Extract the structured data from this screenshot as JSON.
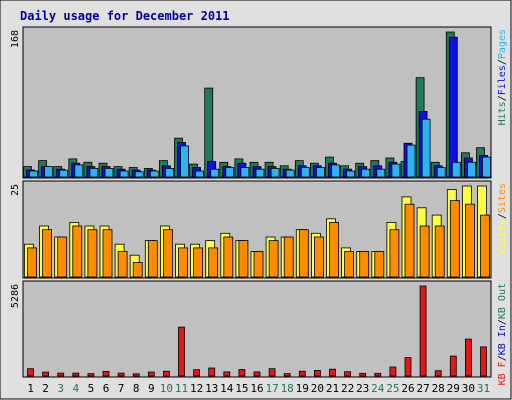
{
  "chart_data": {
    "type": "bar",
    "title": "Daily usage for December 2011",
    "colors": {
      "background": "#e0e0e0",
      "panel": "#c0c0c0",
      "title": "#0000a0",
      "hits": "#1e7b57",
      "files": "#1010e0",
      "pages": "#2db4f0",
      "visits": "#ffff40",
      "sites": "#ff8c00",
      "kb_in": "#1010c0",
      "kb_out": "#1e7b57",
      "kb_f": "#e01818",
      "weekend_label": "#207a50",
      "day_label": "#000000"
    },
    "categories": [
      "1",
      "2",
      "3",
      "4",
      "5",
      "6",
      "7",
      "8",
      "9",
      "10",
      "11",
      "12",
      "13",
      "14",
      "15",
      "16",
      "17",
      "18",
      "19",
      "20",
      "21",
      "22",
      "23",
      "24",
      "25",
      "26",
      "27",
      "28",
      "29",
      "30",
      "31"
    ],
    "weekend_days": [
      "3",
      "4",
      "10",
      "11",
      "17",
      "18",
      "24",
      "25",
      "31"
    ],
    "panels": [
      {
        "max_label": "168",
        "ymax": 168,
        "legend": [
          {
            "text": "Hits",
            "color": "#1e7b57"
          },
          {
            "text": "/",
            "color": "#000000"
          },
          {
            "text": "Files",
            "color": "#1010e0"
          },
          {
            "text": "/",
            "color": "#000000"
          },
          {
            "text": "Pages",
            "color": "#2db4f0"
          }
        ],
        "series": [
          {
            "name": "Hits",
            "color": "#1e7b57",
            "values": [
              12,
              19,
              12,
              21,
              17,
              16,
              12,
              11,
              10,
              19,
              45,
              15,
              103,
              17,
              21,
              17,
              17,
              13,
              19,
              16,
              23,
              13,
              16,
              19,
              22,
              18,
              115,
              17,
              168,
              28,
              34
            ]
          },
          {
            "name": "Files",
            "color": "#1010e0",
            "values": [
              8,
              12,
              9,
              16,
              12,
              12,
              9,
              8,
              8,
              13,
              40,
              11,
              18,
              12,
              16,
              12,
              12,
              9,
              13,
              13,
              16,
              9,
              12,
              13,
              17,
              39,
              76,
              13,
              162,
              22,
              25
            ]
          },
          {
            "name": "Pages",
            "color": "#2db4f0",
            "values": [
              7,
              12,
              8,
              14,
              10,
              10,
              7,
              6,
              7,
              10,
              36,
              7,
              9,
              11,
              11,
              9,
              10,
              8,
              11,
              11,
              14,
              7,
              9,
              9,
              15,
              37,
              67,
              11,
              17,
              17,
              23
            ]
          }
        ]
      },
      {
        "max_label": "25",
        "ymax": 25,
        "legend": [
          {
            "text": "Visits",
            "color": "#ffff40"
          },
          {
            "text": "/",
            "color": "#000000"
          },
          {
            "text": "Sites",
            "color": "#ff8c00"
          }
        ],
        "series": [
          {
            "name": "Visits",
            "color": "#ffff40",
            "values": [
              9,
              14,
              11,
              15,
              14,
              14,
              9,
              6,
              10,
              14,
              9,
              9,
              10,
              12,
              10,
              7,
              11,
              11,
              13,
              12,
              16,
              8,
              7,
              7,
              15,
              22,
              19,
              17,
              24,
              25,
              25
            ]
          },
          {
            "name": "Sites",
            "color": "#ff8c00",
            "values": [
              8,
              13,
              11,
              14,
              13,
              13,
              7,
              4,
              10,
              13,
              8,
              8,
              8,
              11,
              10,
              7,
              10,
              11,
              13,
              11,
              15,
              7,
              7,
              7,
              13,
              20,
              14,
              14,
              21,
              20,
              17
            ]
          }
        ]
      },
      {
        "max_label": "5286",
        "ymax": 5286,
        "legend": [
          {
            "text": "KB F",
            "color": "#e01818"
          },
          {
            "text": "/",
            "color": "#000000"
          },
          {
            "text": "KB In",
            "color": "#1010c0"
          },
          {
            "text": "/",
            "color": "#000000"
          },
          {
            "text": "KB Out",
            "color": "#1e7b57"
          }
        ],
        "series": [
          {
            "name": "KB F",
            "color": "#e01818",
            "values": [
              430,
              230,
              170,
              170,
              140,
              270,
              170,
              130,
              230,
              280,
              2870,
              370,
              470,
              240,
              380,
              240,
              430,
              140,
              280,
              330,
              400,
              250,
              160,
              160,
              530,
              1080,
              5286,
              310,
              1170,
              2170,
              1710
            ]
          }
        ]
      }
    ]
  }
}
